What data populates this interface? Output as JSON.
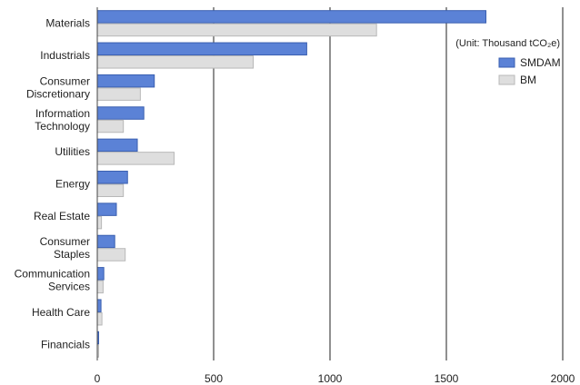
{
  "chart_data": {
    "type": "bar",
    "orientation": "horizontal",
    "categories": [
      [
        "Materials"
      ],
      [
        "Industrials"
      ],
      [
        "Consumer",
        "Discretionary"
      ],
      [
        "Information",
        "Technology"
      ],
      [
        "Utilities"
      ],
      [
        "Energy"
      ],
      [
        "Real Estate"
      ],
      [
        "Consumer",
        "Staples"
      ],
      [
        "Communication",
        "Services"
      ],
      [
        "Health Care"
      ],
      [
        "Financials"
      ]
    ],
    "series": [
      {
        "name": "SMDAM",
        "color": "#5b82d6",
        "values": [
          1670,
          900,
          245,
          200,
          172,
          130,
          82,
          75,
          28,
          16,
          5
        ]
      },
      {
        "name": "BM",
        "color": "#dedede",
        "values": [
          1200,
          670,
          185,
          112,
          330,
          112,
          18,
          120,
          25,
          20,
          2
        ]
      }
    ],
    "xlim": [
      0,
      2000
    ],
    "xticks": [
      "0",
      "500",
      "1000",
      "1500",
      "2000"
    ],
    "xtick_values": [
      0,
      500,
      1000,
      1500,
      2000
    ],
    "unit_label": "(Unit: Thousand tCO₂e)",
    "grid": "vertical",
    "legend": "right"
  }
}
